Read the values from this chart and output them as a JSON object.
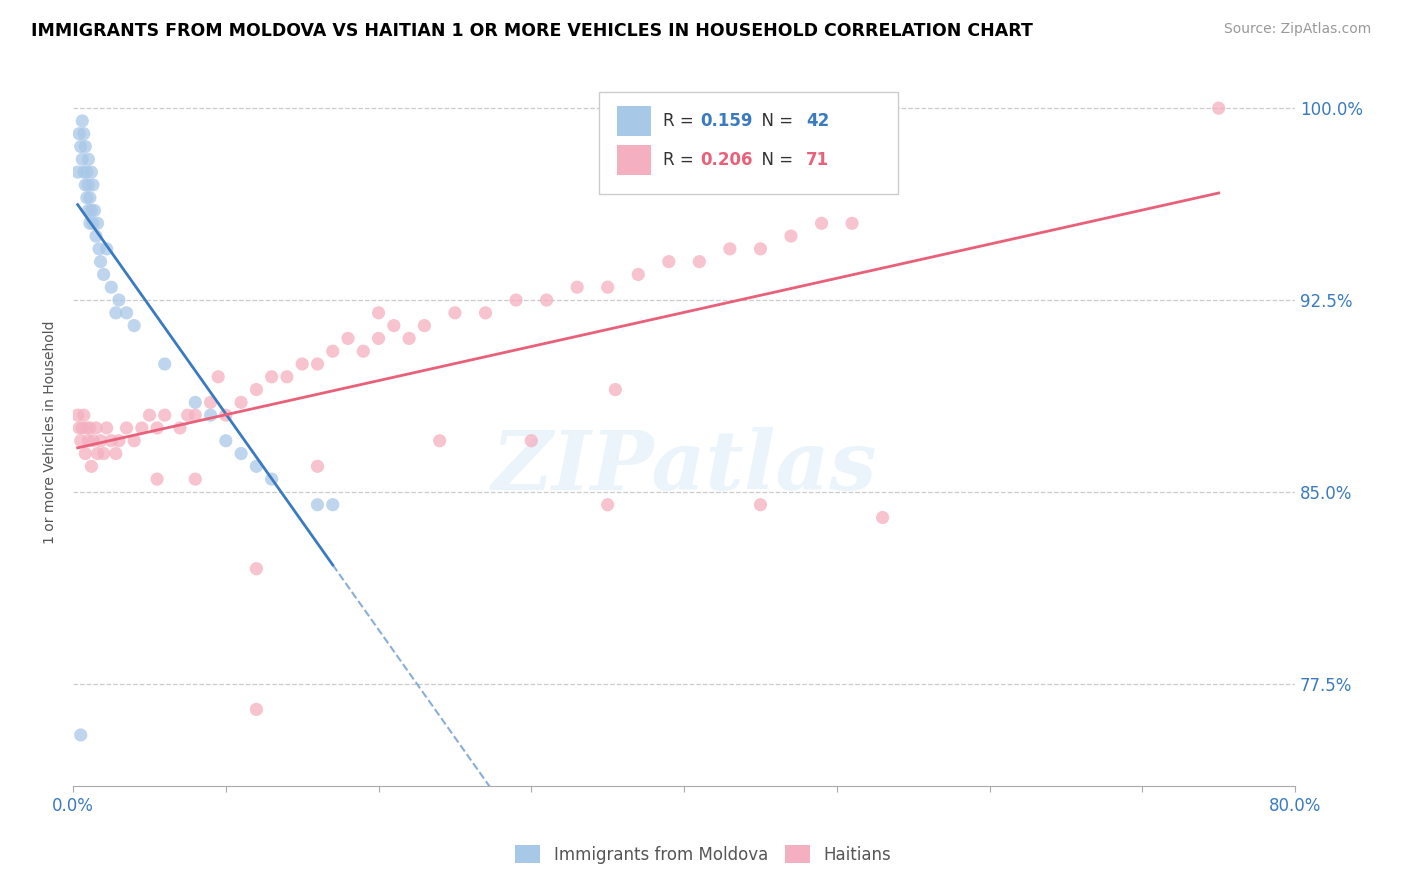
{
  "title": "IMMIGRANTS FROM MOLDOVA VS HAITIAN 1 OR MORE VEHICLES IN HOUSEHOLD CORRELATION CHART",
  "source": "Source: ZipAtlas.com",
  "ylabel": "1 or more Vehicles in Household",
  "xlim": [
    0.0,
    0.8
  ],
  "ylim": [
    0.735,
    1.012
  ],
  "yticks": [
    0.775,
    0.85,
    0.925,
    1.0
  ],
  "ytick_labels": [
    "77.5%",
    "85.0%",
    "92.5%",
    "100.0%"
  ],
  "xticks": [
    0.0,
    0.1,
    0.2,
    0.3,
    0.4,
    0.5,
    0.6,
    0.7,
    0.8
  ],
  "xtick_labels": [
    "0.0%",
    "",
    "",
    "",
    "",
    "",
    "",
    "",
    "80.0%"
  ],
  "moldova_color": "#a8c8e8",
  "haitian_color": "#f4afc0",
  "moldova_line_color": "#3a7abf",
  "haitian_line_color": "#e8607a",
  "R_moldova": 0.159,
  "N_moldova": 42,
  "R_haitian": 0.206,
  "N_haitian": 71,
  "watermark": "ZIPatlas",
  "moldova_x": [
    0.003,
    0.004,
    0.005,
    0.006,
    0.006,
    0.007,
    0.007,
    0.008,
    0.008,
    0.009,
    0.009,
    0.01,
    0.01,
    0.01,
    0.011,
    0.011,
    0.012,
    0.012,
    0.013,
    0.013,
    0.014,
    0.015,
    0.016,
    0.017,
    0.018,
    0.02,
    0.022,
    0.025,
    0.028,
    0.03,
    0.035,
    0.04,
    0.06,
    0.08,
    0.09,
    0.1,
    0.11,
    0.12,
    0.13,
    0.16,
    0.17,
    0.005
  ],
  "moldova_y": [
    0.975,
    0.99,
    0.985,
    0.98,
    0.995,
    0.975,
    0.99,
    0.97,
    0.985,
    0.965,
    0.975,
    0.96,
    0.97,
    0.98,
    0.955,
    0.965,
    0.96,
    0.975,
    0.955,
    0.97,
    0.96,
    0.95,
    0.955,
    0.945,
    0.94,
    0.935,
    0.945,
    0.93,
    0.92,
    0.925,
    0.92,
    0.915,
    0.9,
    0.885,
    0.88,
    0.87,
    0.865,
    0.86,
    0.855,
    0.845,
    0.845,
    0.755
  ],
  "haitian_x": [
    0.003,
    0.004,
    0.005,
    0.006,
    0.007,
    0.008,
    0.009,
    0.01,
    0.011,
    0.012,
    0.013,
    0.015,
    0.016,
    0.018,
    0.02,
    0.022,
    0.025,
    0.028,
    0.03,
    0.035,
    0.04,
    0.045,
    0.05,
    0.055,
    0.06,
    0.07,
    0.08,
    0.09,
    0.1,
    0.11,
    0.12,
    0.13,
    0.14,
    0.15,
    0.16,
    0.17,
    0.18,
    0.19,
    0.2,
    0.21,
    0.22,
    0.23,
    0.25,
    0.27,
    0.29,
    0.31,
    0.33,
    0.35,
    0.37,
    0.39,
    0.41,
    0.43,
    0.45,
    0.47,
    0.49,
    0.51,
    0.055,
    0.075,
    0.095,
    0.2,
    0.75,
    0.355,
    0.12,
    0.24,
    0.16,
    0.08,
    0.3,
    0.35,
    0.45,
    0.53,
    0.12
  ],
  "haitian_y": [
    0.88,
    0.875,
    0.87,
    0.875,
    0.88,
    0.865,
    0.875,
    0.87,
    0.875,
    0.86,
    0.87,
    0.875,
    0.865,
    0.87,
    0.865,
    0.875,
    0.87,
    0.865,
    0.87,
    0.875,
    0.87,
    0.875,
    0.88,
    0.875,
    0.88,
    0.875,
    0.88,
    0.885,
    0.88,
    0.885,
    0.89,
    0.895,
    0.895,
    0.9,
    0.9,
    0.905,
    0.91,
    0.905,
    0.91,
    0.915,
    0.91,
    0.915,
    0.92,
    0.92,
    0.925,
    0.925,
    0.93,
    0.93,
    0.935,
    0.94,
    0.94,
    0.945,
    0.945,
    0.95,
    0.955,
    0.955,
    0.855,
    0.88,
    0.895,
    0.92,
    1.0,
    0.89,
    0.82,
    0.87,
    0.86,
    0.855,
    0.87,
    0.845,
    0.845,
    0.84,
    0.765
  ]
}
